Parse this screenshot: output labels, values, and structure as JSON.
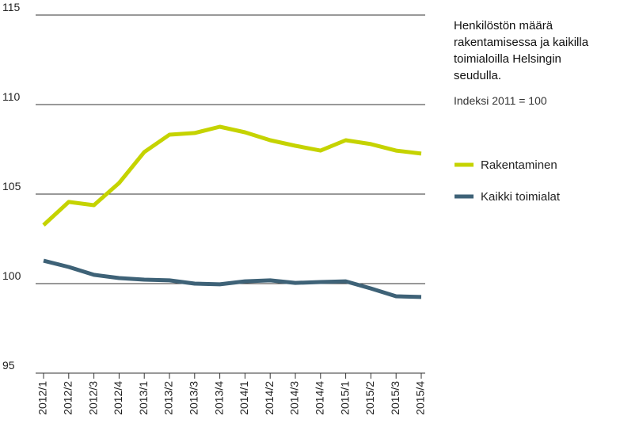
{
  "chart_data": {
    "type": "line",
    "title": "Henkilöstön määrä rakentamisessa ja kaikilla toimialoilla Helsingin seudulla.",
    "subtitle": "Indeksi 2011 = 100",
    "categories": [
      "2012/1",
      "2012/2",
      "2012/3",
      "2012/4",
      "2013/1",
      "2013/2",
      "2013/3",
      "2013/4",
      "2014/1",
      "2014/2",
      "2014/3",
      "2014/4",
      "2015/1",
      "2015/2",
      "2015/3",
      "2015/4"
    ],
    "series": [
      {
        "name": "Rakentaminen",
        "color": "#c5d300",
        "values": [
          103.27,
          104.56,
          104.38,
          105.62,
          107.35,
          108.32,
          108.41,
          108.76,
          108.45,
          108.01,
          107.7,
          107.43,
          108.01,
          107.79,
          107.43,
          107.26
        ]
      },
      {
        "name": "Kaikki toimialat",
        "color": "#3e6277",
        "values": [
          101.28,
          100.93,
          100.49,
          100.31,
          100.22,
          100.18,
          100.0,
          99.96,
          100.13,
          100.18,
          100.04,
          100.09,
          100.13,
          99.73,
          99.29,
          99.25
        ]
      }
    ],
    "ylim": [
      95,
      115
    ],
    "yticks": [
      95,
      100,
      105,
      110,
      115
    ],
    "grid": true
  }
}
